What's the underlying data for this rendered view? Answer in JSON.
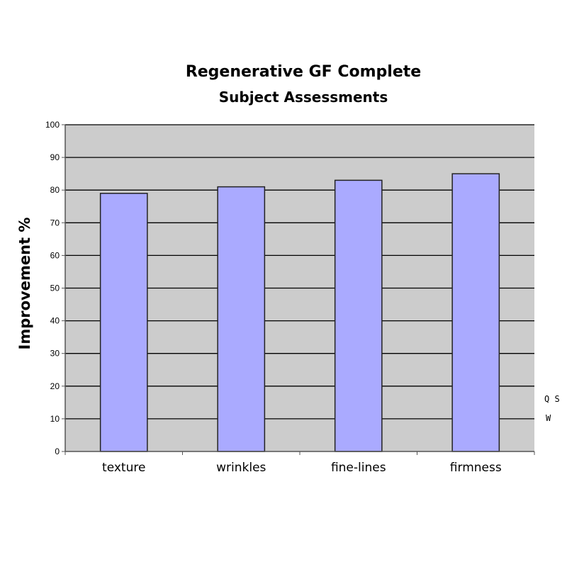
{
  "chart_data": {
    "type": "bar",
    "title": "Regenerative GF Complete",
    "subtitle": "Subject Assessments",
    "xlabel": "",
    "ylabel": "Improvement %",
    "categories": [
      "texture",
      "wrinkles",
      "fine-lines",
      "firmness"
    ],
    "values": [
      79,
      81,
      83,
      85
    ],
    "ylim": [
      0,
      100
    ],
    "yticks": [
      0,
      10,
      20,
      30,
      40,
      50,
      60,
      70,
      80,
      90,
      100
    ],
    "grid": true,
    "legend": "none",
    "colors": {
      "bar_fill": "#aaaaff",
      "bar_stroke": "#222222",
      "plot_background": "#cccccc",
      "gridline": "#000000",
      "axis": "#555555"
    }
  },
  "edge_fragments": [
    "Q S",
    "W"
  ]
}
